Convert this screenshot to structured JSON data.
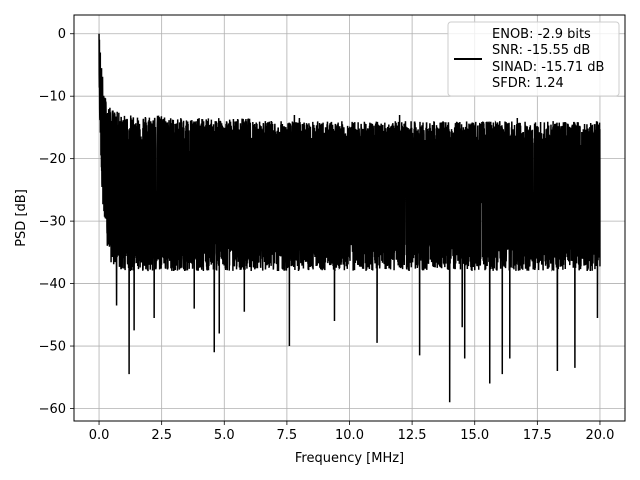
{
  "chart_data": {
    "type": "line",
    "xlabel": "Frequency [MHz]",
    "ylabel": "PSD [dB]",
    "xlim": [
      -1.0,
      21.0
    ],
    "ylim": [
      -62.0,
      3.0
    ],
    "x_ticks": [
      0.0,
      2.5,
      5.0,
      7.5,
      10.0,
      12.5,
      15.0,
      17.5,
      20.0
    ],
    "x_tick_labels": [
      "0.0",
      "2.5",
      "5.0",
      "7.5",
      "10.0",
      "12.5",
      "15.0",
      "17.5",
      "20.0"
    ],
    "y_ticks": [
      0,
      -10,
      -20,
      -30,
      -40,
      -50,
      -60
    ],
    "y_tick_labels": [
      "0",
      "−10",
      "−20",
      "−30",
      "−40",
      "−50",
      "−60"
    ],
    "grid": true,
    "line_color": "#000000",
    "legend": {
      "placement": "top-right",
      "entries": [
        "ENOB: -2.9 bits",
        "SNR: -15.55 dB",
        "SINAD: -15.71 dB",
        "SFDR: 1.24"
      ]
    },
    "series": [
      {
        "x": [
          0.0,
          0.02,
          0.05,
          0.08,
          0.12,
          0.18,
          0.25,
          0.35,
          0.5,
          0.75,
          1.0,
          1.5,
          2.0,
          2.5,
          3.0,
          4.0,
          5.0,
          6.0,
          7.0,
          8.0,
          9.0,
          10.0,
          11.0,
          12.0,
          13.0,
          14.0,
          15.0,
          16.0,
          17.0,
          18.0,
          19.0,
          20.0
        ],
        "upper": [
          0.0,
          -2.0,
          -4.0,
          -6.0,
          -7.0,
          -9.0,
          -11.0,
          -12.5,
          -13.0,
          -13.5,
          -14.0,
          -14.0,
          -14.0,
          -14.0,
          -14.5,
          -14.5,
          -14.5,
          -14.5,
          -15.0,
          -15.0,
          -15.0,
          -15.0,
          -15.0,
          -15.0,
          -15.0,
          -15.0,
          -15.0,
          -15.0,
          -15.0,
          -15.0,
          -15.0,
          -15.0
        ],
        "lower": [
          -10.0,
          -12.0,
          -16.0,
          -20.0,
          -24.0,
          -28.0,
          -32.0,
          -34.0,
          -36.0,
          -37.0,
          -37.0,
          -37.0,
          -37.0,
          -37.0,
          -37.0,
          -37.0,
          -37.0,
          -37.0,
          -37.0,
          -37.0,
          -37.0,
          -37.0,
          -37.0,
          -37.0,
          -37.0,
          -37.0,
          -37.0,
          -37.0,
          -37.0,
          -37.0,
          -37.0,
          -37.0
        ],
        "dips": [
          {
            "x": 1.2,
            "y": -54.5
          },
          {
            "x": 1.4,
            "y": -47.5
          },
          {
            "x": 0.7,
            "y": -43.5
          },
          {
            "x": 2.2,
            "y": -45.5
          },
          {
            "x": 3.8,
            "y": -44.0
          },
          {
            "x": 4.6,
            "y": -51.0
          },
          {
            "x": 4.8,
            "y": -48.0
          },
          {
            "x": 5.8,
            "y": -44.5
          },
          {
            "x": 7.6,
            "y": -50.0
          },
          {
            "x": 9.4,
            "y": -46.0
          },
          {
            "x": 11.1,
            "y": -49.5
          },
          {
            "x": 12.8,
            "y": -51.5
          },
          {
            "x": 14.0,
            "y": -59.0
          },
          {
            "x": 14.5,
            "y": -47.0
          },
          {
            "x": 14.6,
            "y": -52.0
          },
          {
            "x": 15.6,
            "y": -56.0
          },
          {
            "x": 16.1,
            "y": -54.5
          },
          {
            "x": 16.4,
            "y": -52.0
          },
          {
            "x": 18.3,
            "y": -54.0
          },
          {
            "x": 19.0,
            "y": -53.5
          },
          {
            "x": 19.9,
            "y": -45.5
          }
        ],
        "peaks": [
          {
            "x": 0.05,
            "y": -3.0
          },
          {
            "x": 0.1,
            "y": -5.5
          },
          {
            "x": 7.8,
            "y": -13.0
          },
          {
            "x": 8.0,
            "y": -13.5
          },
          {
            "x": 12.0,
            "y": -13.0
          },
          {
            "x": 16.0,
            "y": -14.0
          },
          {
            "x": 16.7,
            "y": -13.5
          }
        ]
      }
    ]
  }
}
